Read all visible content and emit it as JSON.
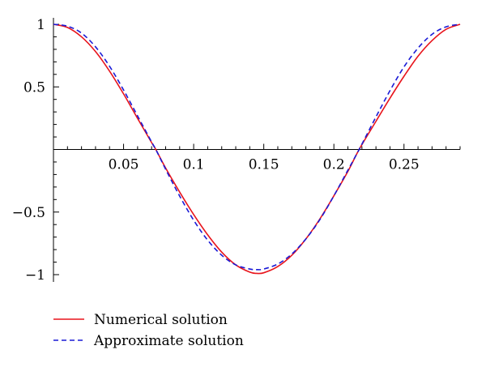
{
  "chart_data": {
    "type": "line",
    "title": "",
    "xlabel": "",
    "ylabel": "",
    "xlim": [
      0,
      0.29
    ],
    "ylim": [
      -1.05,
      1.05
    ],
    "x_ticks": [
      0.05,
      0.1,
      0.15,
      0.2,
      0.25
    ],
    "x_tick_labels": [
      "0.05",
      "0.1",
      "0.15",
      "0.2",
      "0.25"
    ],
    "y_ticks": [
      1,
      0.5,
      -0.5,
      -1
    ],
    "y_tick_labels": [
      "1",
      "0.5",
      "−0.5",
      "−1"
    ],
    "grid": false,
    "legend_position": "bottom-left",
    "series": [
      {
        "name": "Numerical solution",
        "color": "#e8141c",
        "style": "solid",
        "points": [
          [
            0,
            1.0
          ],
          [
            0.01,
            0.975
          ],
          [
            0.02,
            0.9
          ],
          [
            0.03,
            0.782
          ],
          [
            0.04,
            0.626
          ],
          [
            0.05,
            0.444
          ],
          [
            0.06,
            0.248
          ],
          [
            0.07,
            0.055
          ],
          [
            0.073,
            0.0
          ],
          [
            0.08,
            -0.148
          ],
          [
            0.09,
            -0.34
          ],
          [
            0.1,
            -0.52
          ],
          [
            0.11,
            -0.682
          ],
          [
            0.12,
            -0.82
          ],
          [
            0.13,
            -0.922
          ],
          [
            0.14,
            -0.98
          ],
          [
            0.145,
            -0.99
          ],
          [
            0.15,
            -0.985
          ],
          [
            0.16,
            -0.935
          ],
          [
            0.17,
            -0.845
          ],
          [
            0.18,
            -0.715
          ],
          [
            0.19,
            -0.555
          ],
          [
            0.2,
            -0.37
          ],
          [
            0.21,
            -0.175
          ],
          [
            0.218,
            0.0
          ],
          [
            0.23,
            0.225
          ],
          [
            0.24,
            0.41
          ],
          [
            0.25,
            0.585
          ],
          [
            0.26,
            0.745
          ],
          [
            0.27,
            0.87
          ],
          [
            0.28,
            0.96
          ],
          [
            0.29,
            1.0
          ]
        ]
      },
      {
        "name": "Approximate solution",
        "color": "#1a1ad6",
        "style": "dashed",
        "points": [
          [
            0,
            1.0
          ],
          [
            0.01,
            0.985
          ],
          [
            0.02,
            0.93
          ],
          [
            0.03,
            0.82
          ],
          [
            0.04,
            0.665
          ],
          [
            0.05,
            0.475
          ],
          [
            0.06,
            0.268
          ],
          [
            0.07,
            0.06
          ],
          [
            0.073,
            0.0
          ],
          [
            0.08,
            -0.158
          ],
          [
            0.09,
            -0.372
          ],
          [
            0.1,
            -0.565
          ],
          [
            0.11,
            -0.725
          ],
          [
            0.12,
            -0.845
          ],
          [
            0.13,
            -0.922
          ],
          [
            0.14,
            -0.955
          ],
          [
            0.145,
            -0.96
          ],
          [
            0.15,
            -0.955
          ],
          [
            0.16,
            -0.915
          ],
          [
            0.17,
            -0.835
          ],
          [
            0.18,
            -0.715
          ],
          [
            0.19,
            -0.56
          ],
          [
            0.2,
            -0.37
          ],
          [
            0.21,
            -0.165
          ],
          [
            0.218,
            0.0
          ],
          [
            0.23,
            0.26
          ],
          [
            0.24,
            0.47
          ],
          [
            0.25,
            0.66
          ],
          [
            0.26,
            0.81
          ],
          [
            0.27,
            0.92
          ],
          [
            0.28,
            0.98
          ],
          [
            0.29,
            1.0
          ]
        ]
      }
    ]
  }
}
